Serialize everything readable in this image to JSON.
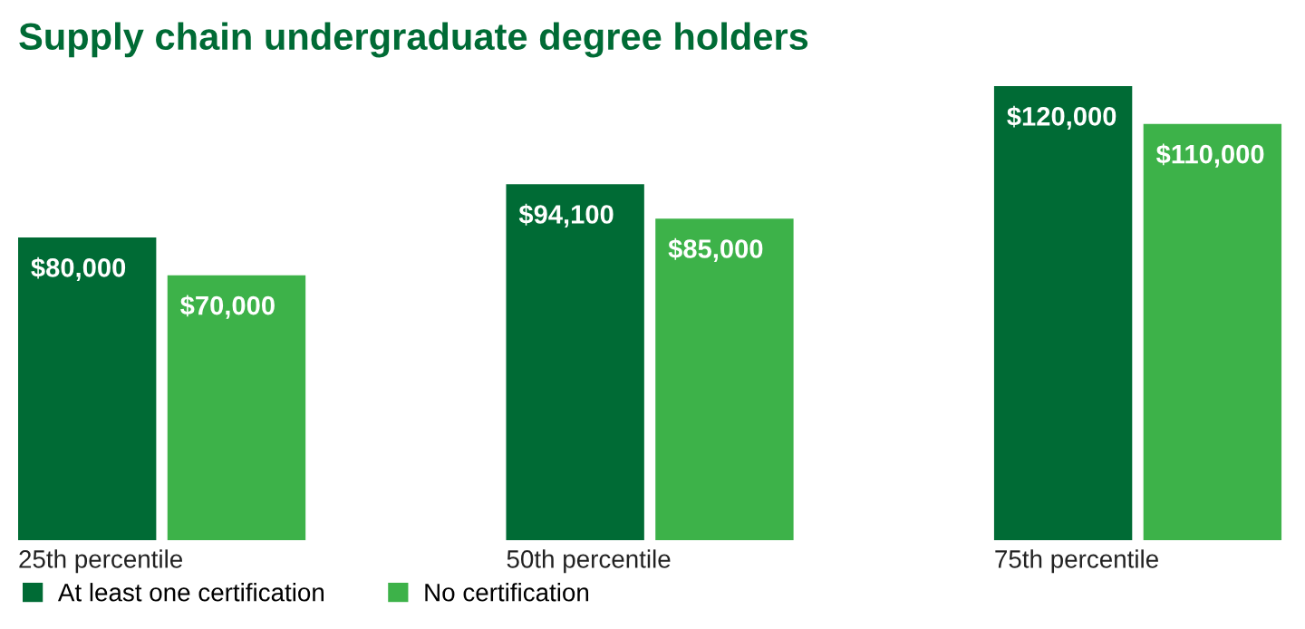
{
  "chart_data": {
    "type": "bar",
    "title": "Supply chain undergraduate degree holders",
    "categories": [
      "25th percentile",
      "50th percentile",
      "75th percentile"
    ],
    "series": [
      {
        "name": "At least one certification",
        "color": "#006b35",
        "values": [
          80000,
          94100,
          120000
        ],
        "value_labels": [
          "$80,000",
          "$94,100",
          "$120,000"
        ]
      },
      {
        "name": "No certification",
        "color": "#3db249",
        "values": [
          70000,
          85000,
          110000
        ],
        "value_labels": [
          "$70,000",
          "$85,000",
          "$110,000"
        ]
      }
    ],
    "legend": "bottom left"
  }
}
